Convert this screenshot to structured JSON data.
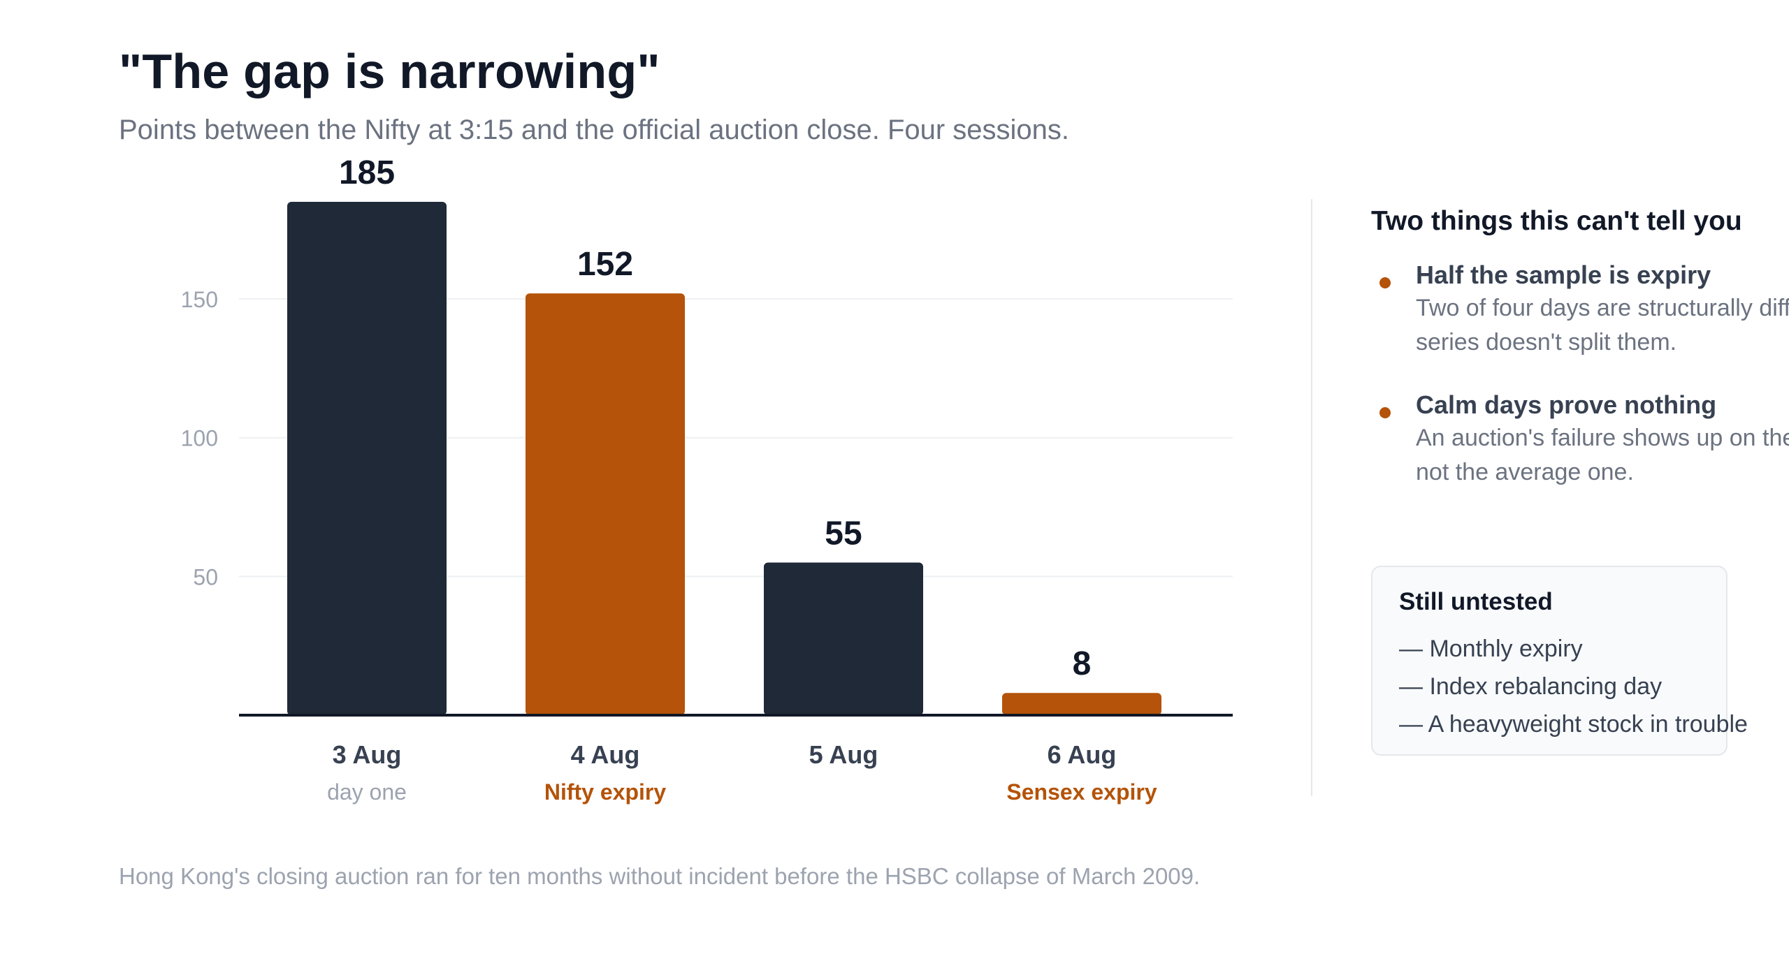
{
  "header": {
    "title": "\"The gap is narrowing\"",
    "subtitle": "Points between the Nifty at 3:15 and the official auction close. Four sessions."
  },
  "chart_data": {
    "type": "bar",
    "categories": [
      "3 Aug",
      "4 Aug",
      "5 Aug",
      "6 Aug"
    ],
    "category_notes": [
      "day one",
      "Nifty expiry",
      "",
      "Sensex expiry"
    ],
    "values": [
      185,
      152,
      55,
      8
    ],
    "highlight": [
      false,
      true,
      false,
      true
    ],
    "ylim": [
      0,
      185
    ],
    "yticks": [
      50,
      100,
      150
    ],
    "grid": true,
    "title": "\"The gap is narrowing\"",
    "subtitle": "Points between the Nifty at 3:15 and the official auction close. Four sessions.",
    "colors": {
      "default": "#1f2937",
      "highlight": "#b45309",
      "tick": "#9ca3af",
      "grid": "#eef0f3",
      "axis": "#111827",
      "value_label": "#111827",
      "category_label": "#374151",
      "note_plain": "#9ca3af",
      "note_highlight": "#b45309"
    }
  },
  "sidebar": {
    "title": "Two things this can't tell you",
    "points": [
      {
        "heading": "Half the sample is expiry",
        "body": "Two of four days are structurally different. The series doesn't split them."
      },
      {
        "heading": "Calm days prove nothing",
        "body": "An auction's failure shows up on the bad day, not the average one."
      }
    ],
    "untested": {
      "title": "Still untested",
      "items": [
        "— Monthly expiry",
        "— Index rebalancing day",
        "— A heavyweight stock in trouble"
      ]
    }
  },
  "footnote": "Hong Kong's closing auction ran for ten months without incident before the HSBC collapse of March 2009."
}
